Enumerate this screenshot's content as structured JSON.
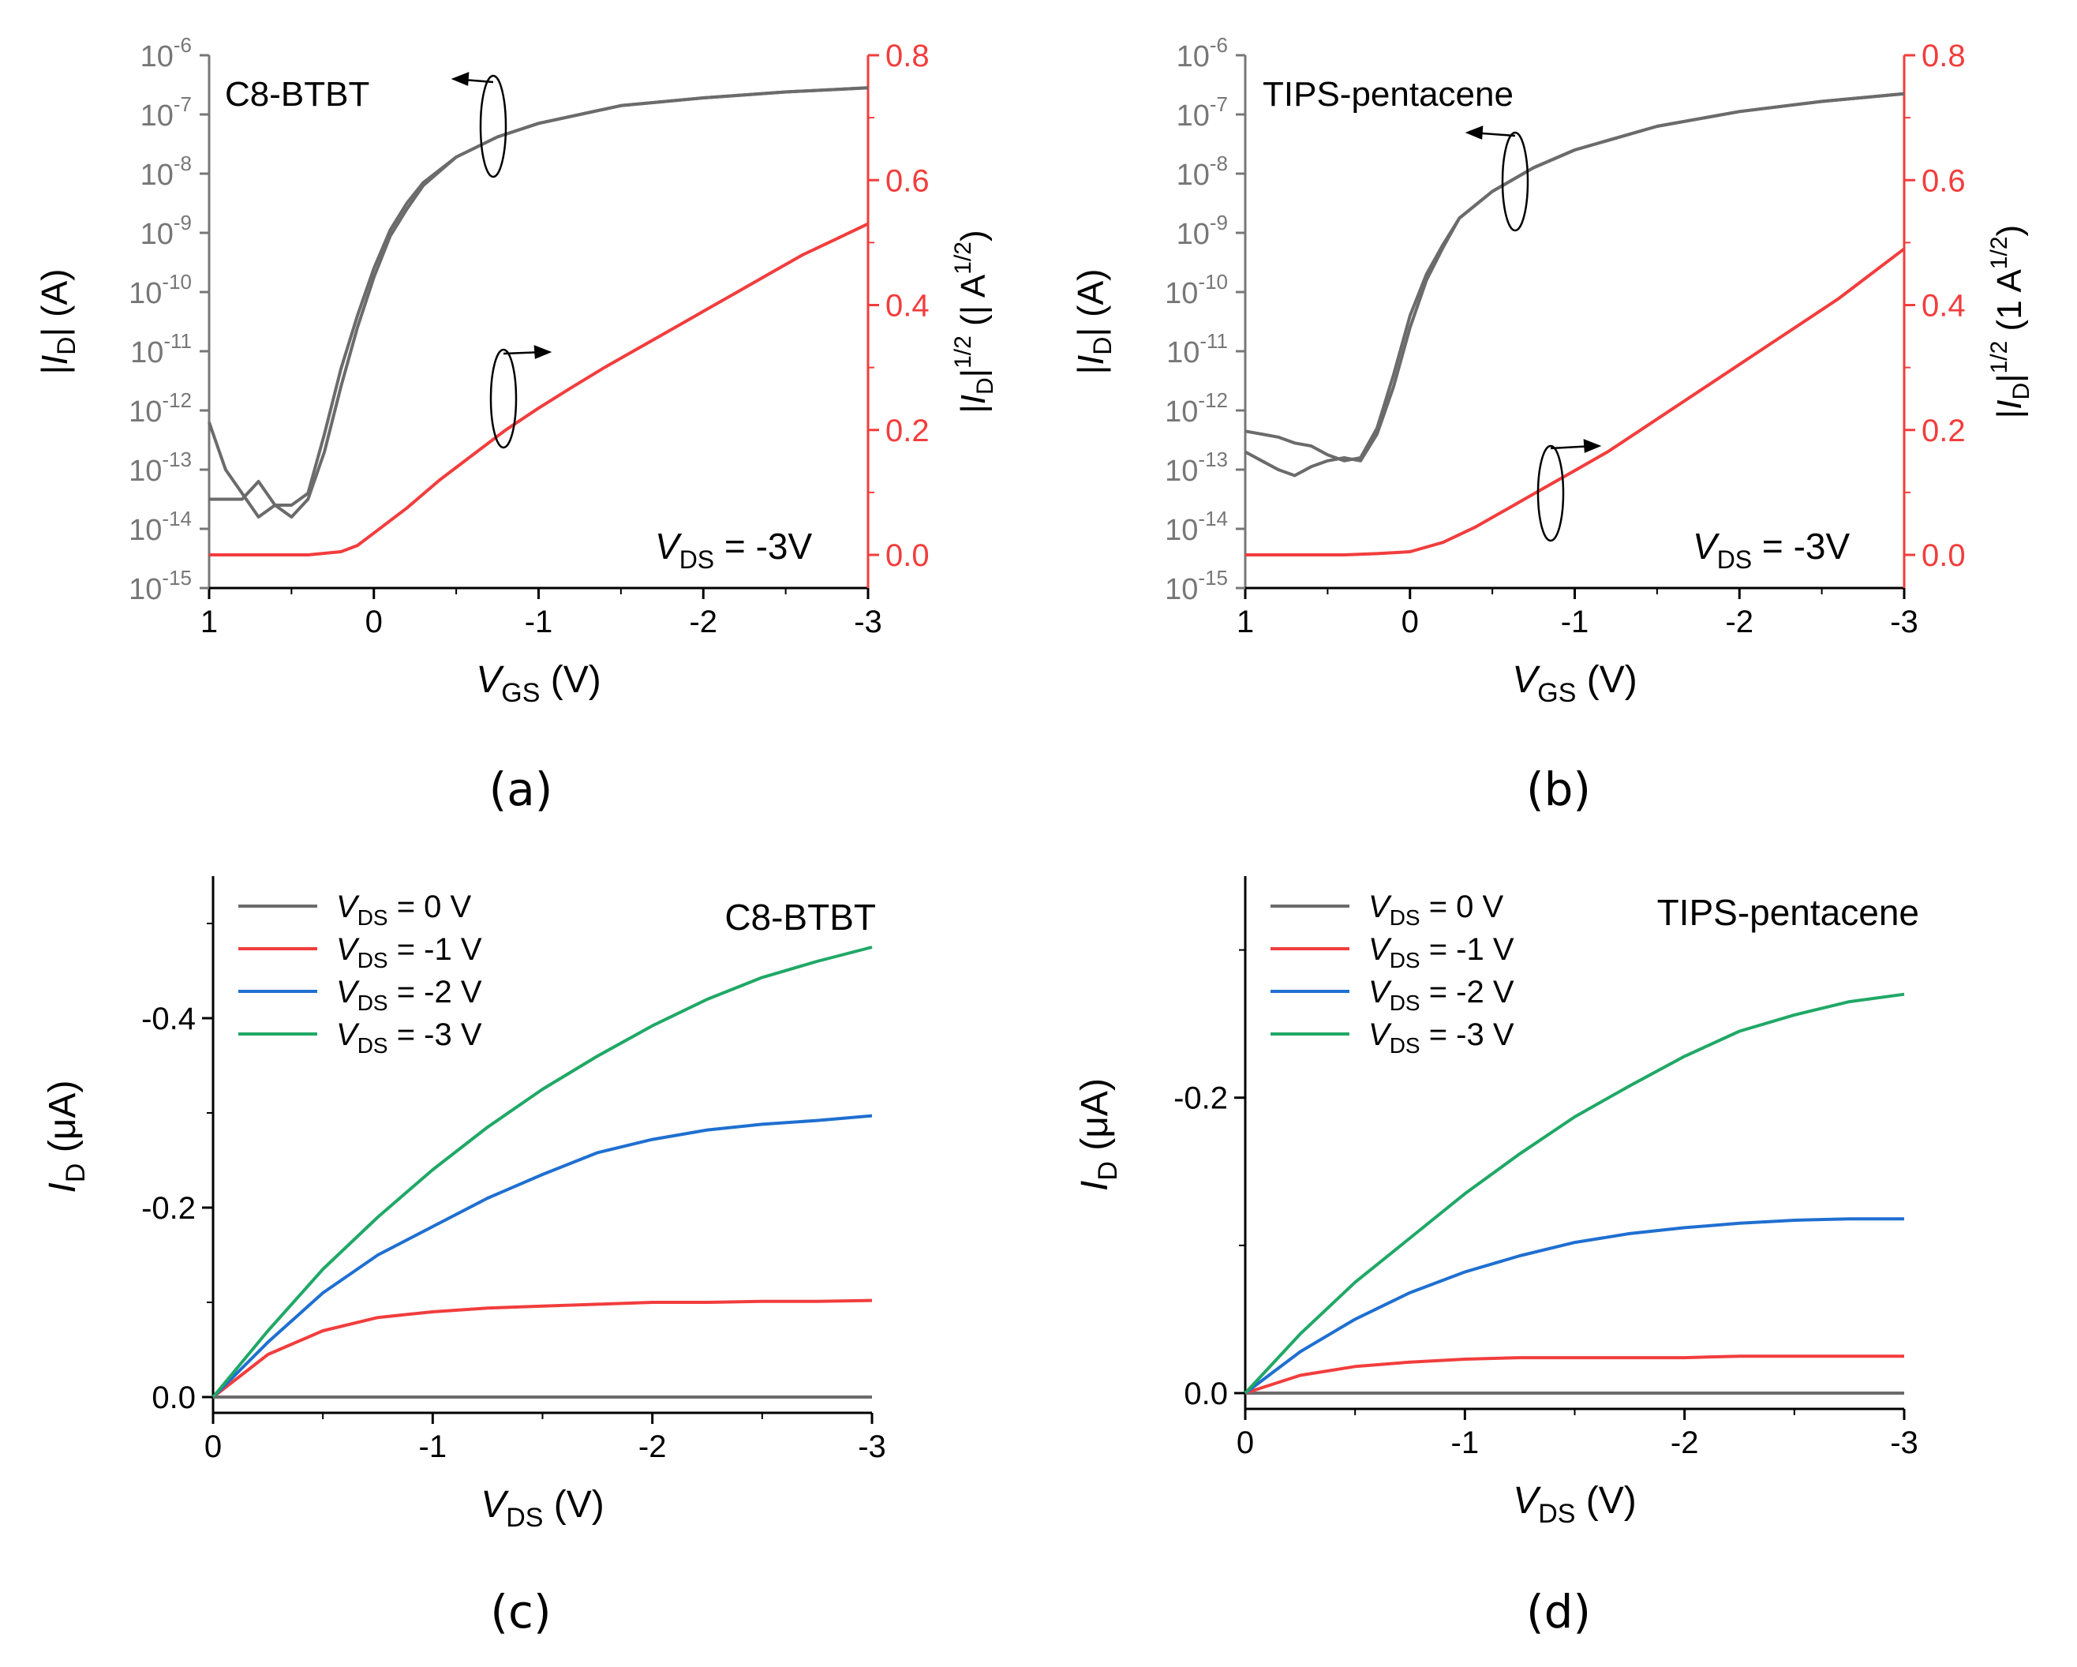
{
  "colors": {
    "gray": "#6b6b6b",
    "red": "#f23d3d",
    "blue": "#1f6fd1",
    "green": "#20a866",
    "axis": "#777777",
    "text": "#000000"
  },
  "chart_data": [
    {
      "id": "a",
      "caption": "(a)",
      "type": "line",
      "panel_label": "C8-BTBT",
      "annotation": {
        "v": "V",
        "sub": "DS",
        "rest": " = -3V"
      },
      "xlabel": {
        "v": "V",
        "sub": "GS",
        "rest": " (V)"
      },
      "ylabel_left": "|ID| (A)",
      "ylabel_right": "|ID|1/2 (| A1/2)",
      "xlim": [
        1,
        -3
      ],
      "x_ticks": [
        "1",
        "0",
        "-1",
        "-2",
        "-3"
      ],
      "y_left_scale": "log",
      "y_left_lim": [
        "1e-15",
        "1e-6"
      ],
      "y_left_ticks": [
        {
          "base": "10",
          "exp": "-15"
        },
        {
          "base": "10",
          "exp": "-14"
        },
        {
          "base": "10",
          "exp": "-13"
        },
        {
          "base": "10",
          "exp": "-12"
        },
        {
          "base": "10",
          "exp": "-11"
        },
        {
          "base": "10",
          "exp": "-10"
        },
        {
          "base": "10",
          "exp": "-9"
        },
        {
          "base": "10",
          "exp": "-8"
        },
        {
          "base": "10",
          "exp": "-7"
        },
        {
          "base": "10",
          "exp": "-6"
        }
      ],
      "y_right_lim": [
        0.0,
        0.8
      ],
      "y_right_ticks": [
        "0.0",
        "0.2",
        "0.4",
        "0.6",
        "0.8"
      ],
      "series": [
        {
          "axis": "left",
          "color": "gray",
          "x": [
            -3,
            -2.5,
            -2,
            -1.5,
            -1,
            -0.75,
            -0.5,
            -0.3,
            -0.2,
            -0.1,
            0,
            0.1,
            0.2,
            0.3,
            0.4,
            0.5,
            0.6,
            0.7,
            0.8,
            0.9,
            1.0
          ],
          "log10_y": [
            -6.55,
            -6.62,
            -6.72,
            -6.85,
            -7.15,
            -7.38,
            -7.72,
            -8.15,
            -8.5,
            -8.95,
            -9.6,
            -10.4,
            -11.3,
            -12.4,
            -13.4,
            -13.6,
            -13.6,
            -13.8,
            -13.4,
            -13.0,
            -12.2
          ]
        },
        {
          "axis": "left",
          "color": "gray",
          "x": [
            -3,
            -2.5,
            -2,
            -1.5,
            -1,
            -0.75,
            -0.5,
            -0.3,
            -0.2,
            -0.1,
            0,
            0.1,
            0.2,
            0.3,
            0.4,
            0.5,
            0.6,
            0.7,
            0.8,
            0.9,
            1.0
          ],
          "log10_y": [
            -6.55,
            -6.62,
            -6.72,
            -6.85,
            -7.15,
            -7.38,
            -7.72,
            -8.2,
            -8.6,
            -9.05,
            -9.75,
            -10.6,
            -11.6,
            -12.7,
            -13.5,
            -13.8,
            -13.6,
            -13.2,
            -13.5,
            -13.5,
            -13.5
          ]
        },
        {
          "axis": "right",
          "color": "red",
          "x": [
            1.0,
            0.8,
            0.6,
            0.4,
            0.2,
            0.1,
            0,
            -0.2,
            -0.4,
            -0.6,
            -0.8,
            -1.0,
            -1.2,
            -1.4,
            -1.6,
            -1.8,
            -2.0,
            -2.2,
            -2.4,
            -2.6,
            -2.8,
            -3.0
          ],
          "y": [
            0.0,
            0.0,
            0.0,
            0.0,
            0.005,
            0.015,
            0.035,
            0.075,
            0.12,
            0.16,
            0.2,
            0.235,
            0.268,
            0.3,
            0.33,
            0.36,
            0.39,
            0.42,
            0.45,
            0.48,
            0.505,
            0.53
          ]
        }
      ]
    },
    {
      "id": "b",
      "caption": "(b)",
      "type": "line",
      "panel_label": "TIPS-pentacene",
      "annotation": {
        "v": "V",
        "sub": "DS",
        "rest": " = -3V"
      },
      "xlabel": {
        "v": "V",
        "sub": "GS",
        "rest": " (V)"
      },
      "ylabel_left": "|ID| (A)",
      "ylabel_right": "|ID|1/2 (1 A1/2)",
      "xlim": [
        1,
        -3
      ],
      "x_ticks": [
        "1",
        "0",
        "-1",
        "-2",
        "-3"
      ],
      "y_left_scale": "log",
      "y_left_lim": [
        "1e-15",
        "1e-6"
      ],
      "y_left_ticks": [
        {
          "base": "10",
          "exp": "-15"
        },
        {
          "base": "10",
          "exp": "-14"
        },
        {
          "base": "10",
          "exp": "-13"
        },
        {
          "base": "10",
          "exp": "-12"
        },
        {
          "base": "10",
          "exp": "-11"
        },
        {
          "base": "10",
          "exp": "-10"
        },
        {
          "base": "10",
          "exp": "-9"
        },
        {
          "base": "10",
          "exp": "-8"
        },
        {
          "base": "10",
          "exp": "-7"
        },
        {
          "base": "10",
          "exp": "-6"
        }
      ],
      "y_right_lim": [
        0.0,
        0.8
      ],
      "y_right_ticks": [
        "0.0",
        "0.2",
        "0.4",
        "0.6",
        "0.8"
      ],
      "series": [
        {
          "axis": "left",
          "color": "gray",
          "x": [
            -3,
            -2.5,
            -2,
            -1.5,
            -1,
            -0.75,
            -0.5,
            -0.3,
            -0.2,
            -0.1,
            0,
            0.1,
            0.2,
            0.3,
            0.4,
            0.5,
            0.6,
            0.7,
            0.8,
            0.9,
            1.0
          ],
          "log10_y": [
            -6.65,
            -6.78,
            -6.95,
            -7.2,
            -7.6,
            -7.9,
            -8.3,
            -8.75,
            -9.2,
            -9.7,
            -10.4,
            -11.4,
            -12.3,
            -12.8,
            -12.85,
            -12.75,
            -12.6,
            -12.55,
            -12.45,
            -12.4,
            -12.35
          ]
        },
        {
          "axis": "left",
          "color": "gray",
          "x": [
            -3,
            -2.5,
            -2,
            -1.5,
            -1,
            -0.75,
            -0.5,
            -0.3,
            -0.2,
            -0.1,
            0,
            0.1,
            0.2,
            0.3,
            0.4,
            0.5,
            0.6,
            0.7,
            0.8,
            0.9,
            1.0
          ],
          "log10_y": [
            -6.65,
            -6.78,
            -6.95,
            -7.2,
            -7.6,
            -7.9,
            -8.3,
            -8.75,
            -9.25,
            -9.8,
            -10.6,
            -11.6,
            -12.4,
            -12.85,
            -12.8,
            -12.85,
            -12.95,
            -13.1,
            -13.0,
            -12.85,
            -12.7
          ]
        },
        {
          "axis": "right",
          "color": "red",
          "x": [
            1.0,
            0.8,
            0.6,
            0.4,
            0.2,
            0,
            -0.2,
            -0.4,
            -0.6,
            -0.8,
            -1.0,
            -1.2,
            -1.4,
            -1.6,
            -1.8,
            -2.0,
            -2.2,
            -2.4,
            -2.6,
            -2.8,
            -3.0
          ],
          "y": [
            0.0,
            0.0,
            0.0,
            0.0,
            0.002,
            0.005,
            0.02,
            0.045,
            0.075,
            0.105,
            0.135,
            0.165,
            0.2,
            0.235,
            0.27,
            0.305,
            0.34,
            0.375,
            0.41,
            0.45,
            0.49
          ]
        }
      ]
    },
    {
      "id": "c",
      "caption": "(c)",
      "type": "line",
      "panel_label": "C8-BTBT",
      "xlabel": {
        "v": "V",
        "sub": "DS",
        "rest": " (V)"
      },
      "ylabel": {
        "v": "I",
        "sub": "D",
        "rest": " (μA)"
      },
      "xlim": [
        0,
        -3
      ],
      "x_ticks": [
        "0",
        "-1",
        "-2",
        "-3"
      ],
      "ylim": [
        0.0,
        -0.55
      ],
      "y_ticks": [
        "0.0",
        "-0.2",
        "-0.4"
      ],
      "x": [
        0,
        -0.25,
        -0.5,
        -0.75,
        -1.0,
        -1.25,
        -1.5,
        -1.75,
        -2.0,
        -2.25,
        -2.5,
        -2.75,
        -3.0
      ],
      "series": [
        {
          "name": "= 0 V",
          "color": "gray",
          "values": [
            0,
            0,
            0,
            0,
            0,
            0,
            0,
            0,
            0,
            0,
            0,
            0,
            0
          ]
        },
        {
          "name": "= -1 V",
          "color": "red",
          "values": [
            0,
            -0.045,
            -0.07,
            -0.084,
            -0.09,
            -0.094,
            -0.096,
            -0.098,
            -0.1,
            -0.1,
            -0.101,
            -0.101,
            -0.102
          ]
        },
        {
          "name": "= -2 V",
          "color": "blue",
          "values": [
            0,
            -0.058,
            -0.11,
            -0.15,
            -0.18,
            -0.21,
            -0.235,
            -0.258,
            -0.272,
            -0.282,
            -0.288,
            -0.292,
            -0.297
          ]
        },
        {
          "name": "= -3 V",
          "color": "green",
          "values": [
            0,
            -0.07,
            -0.135,
            -0.19,
            -0.24,
            -0.285,
            -0.325,
            -0.36,
            -0.392,
            -0.42,
            -0.443,
            -0.46,
            -0.475
          ]
        }
      ],
      "legend_symbol": "V",
      "legend_sub": "DS",
      "legend_position": "top-left"
    },
    {
      "id": "d",
      "caption": "(d)",
      "type": "line",
      "panel_label": "TIPS-pentacene",
      "xlabel": {
        "v": "V",
        "sub": "DS",
        "rest": " (V)"
      },
      "ylabel": {
        "v": "I",
        "sub": "D",
        "rest": " (μA)"
      },
      "xlim": [
        0,
        -3
      ],
      "x_ticks": [
        "0",
        "-1",
        "-2",
        "-3"
      ],
      "ylim": [
        0.0,
        -0.35
      ],
      "y_ticks": [
        "0.0",
        "-0.2"
      ],
      "x": [
        0,
        -0.25,
        -0.5,
        -0.75,
        -1.0,
        -1.25,
        -1.5,
        -1.75,
        -2.0,
        -2.25,
        -2.5,
        -2.75,
        -3.0
      ],
      "series": [
        {
          "name": "= 0 V",
          "color": "gray",
          "values": [
            0,
            0,
            0,
            0,
            0,
            0,
            0,
            0,
            0,
            0,
            0,
            0,
            0
          ]
        },
        {
          "name": "= -1 V",
          "color": "red",
          "values": [
            0,
            -0.012,
            -0.018,
            -0.021,
            -0.023,
            -0.024,
            -0.024,
            -0.024,
            -0.024,
            -0.025,
            -0.025,
            -0.025,
            -0.025
          ]
        },
        {
          "name": "= -2 V",
          "color": "blue",
          "values": [
            0,
            -0.028,
            -0.05,
            -0.068,
            -0.082,
            -0.093,
            -0.102,
            -0.108,
            -0.112,
            -0.115,
            -0.117,
            -0.118,
            -0.118
          ]
        },
        {
          "name": "= -3 V",
          "color": "green",
          "values": [
            0,
            -0.04,
            -0.075,
            -0.105,
            -0.135,
            -0.162,
            -0.187,
            -0.208,
            -0.228,
            -0.245,
            -0.256,
            -0.265,
            -0.27
          ]
        }
      ],
      "legend_symbol": "V",
      "legend_sub": "DS",
      "legend_position": "top-left"
    }
  ]
}
